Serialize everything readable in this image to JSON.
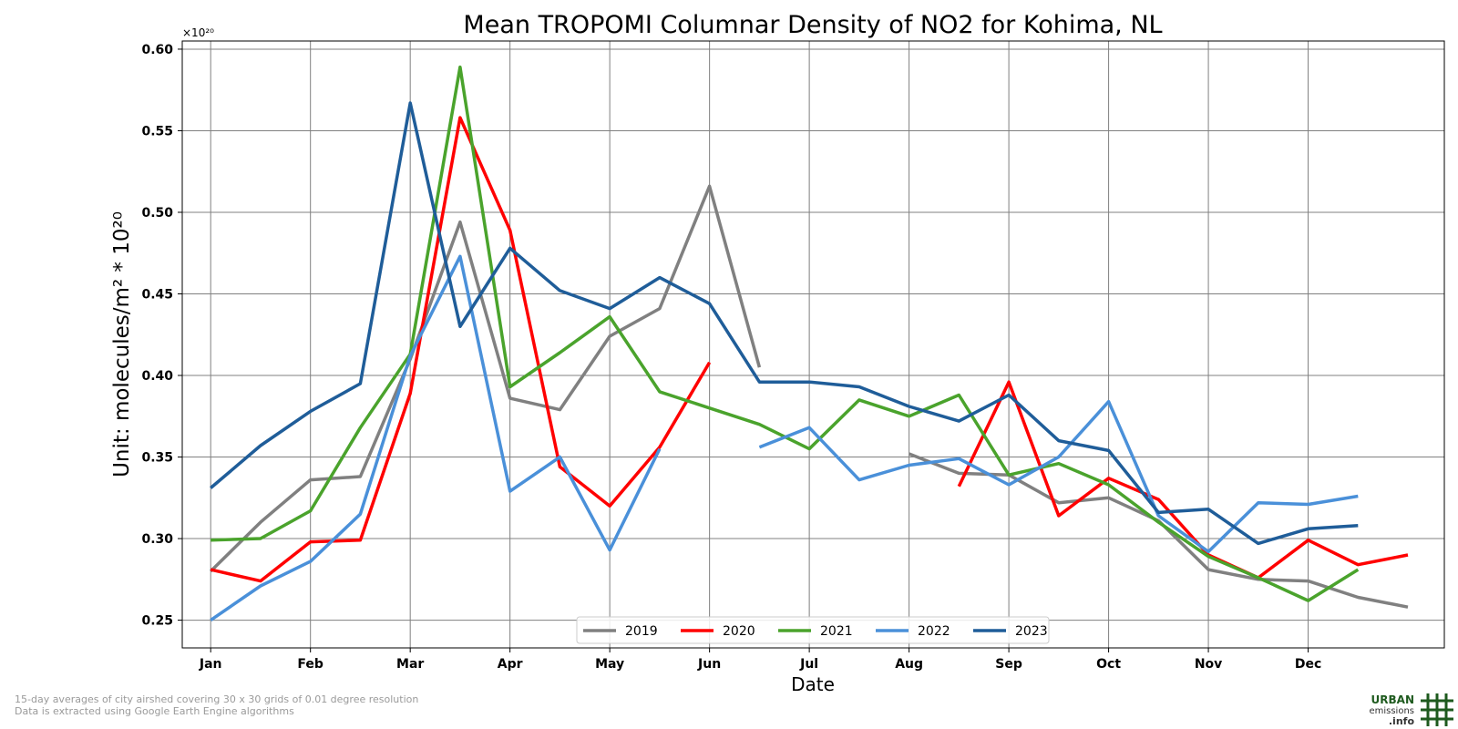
{
  "colors": {
    "2019": "#808080",
    "2020": "#ff0000",
    "2021": "#4aa32c",
    "2022": "#4a90d9",
    "2023": "#1f5d99",
    "grid": "#808080",
    "logo_green": "#1e5a1e"
  },
  "footnotes": [
    "15-day averages of city airshed covering 30 x 30 grids of 0.01 degree resolution",
    "Data is extracted using Google Earth Engine algorithms"
  ],
  "logo": {
    "line1": "URBAN",
    "line2": "emissions",
    "line3": ".info"
  },
  "chart_data": {
    "type": "line",
    "title": "Mean TROPOMI Columnar Density of NO2 for Kohima, NL",
    "xlabel": "Date",
    "ylabel": "Unit: molecules/m² * 10²⁰",
    "y_multiplier_label": "×10²⁰",
    "ylim": [
      0.233,
      0.605
    ],
    "yticks": [
      "0.25",
      "0.30",
      "0.35",
      "0.40",
      "0.45",
      "0.50",
      "0.55",
      "0.60"
    ],
    "xlim": [
      -0.57,
      24.73
    ],
    "month_labels": [
      "Jan",
      "Feb",
      "Mar",
      "Apr",
      "May",
      "Jun",
      "Jul",
      "Aug",
      "Sep",
      "Oct",
      "Nov",
      "Dec"
    ],
    "grid": true,
    "legend_position": "bottom-center",
    "x_unit": "half-month period index (0 = Jan 1st half, 23 = Dec 2nd half)",
    "series": [
      {
        "name": "2019",
        "values": [
          0.28,
          0.31,
          0.336,
          0.338,
          0.41,
          0.494,
          0.386,
          0.379,
          0.424,
          0.441,
          0.516,
          0.405,
          null,
          null,
          0.352,
          0.34,
          0.339,
          0.322,
          0.325,
          0.311,
          0.281,
          0.275,
          0.274,
          0.264,
          0.258
        ]
      },
      {
        "name": "2020",
        "values": [
          0.281,
          0.274,
          0.298,
          0.299,
          0.389,
          0.558,
          0.489,
          0.344,
          0.32,
          0.356,
          0.408,
          null,
          null,
          null,
          null,
          0.332,
          0.396,
          0.314,
          0.337,
          0.324,
          0.29,
          0.276,
          0.299,
          0.284,
          0.29
        ]
      },
      {
        "name": "2021",
        "values": [
          0.299,
          0.3,
          0.317,
          0.368,
          0.413,
          0.589,
          0.393,
          0.414,
          0.436,
          0.39,
          0.38,
          0.37,
          0.355,
          0.385,
          0.375,
          0.388,
          0.339,
          0.346,
          0.333,
          0.31,
          0.289,
          0.276,
          0.262,
          0.281
        ]
      },
      {
        "name": "2022",
        "values": [
          0.25,
          0.271,
          0.286,
          0.315,
          0.412,
          0.473,
          0.329,
          0.35,
          0.293,
          0.355,
          null,
          0.356,
          0.368,
          0.336,
          0.345,
          0.349,
          0.333,
          0.35,
          0.384,
          0.314,
          0.292,
          0.322,
          0.321,
          0.326
        ]
      },
      {
        "name": "2023",
        "values": [
          0.331,
          0.357,
          0.378,
          0.395,
          0.567,
          0.43,
          0.478,
          0.452,
          0.441,
          0.46,
          0.444,
          0.396,
          0.396,
          0.393,
          0.381,
          0.372,
          0.388,
          0.36,
          0.354,
          0.316,
          0.318,
          0.297,
          0.306,
          0.308
        ]
      }
    ]
  }
}
